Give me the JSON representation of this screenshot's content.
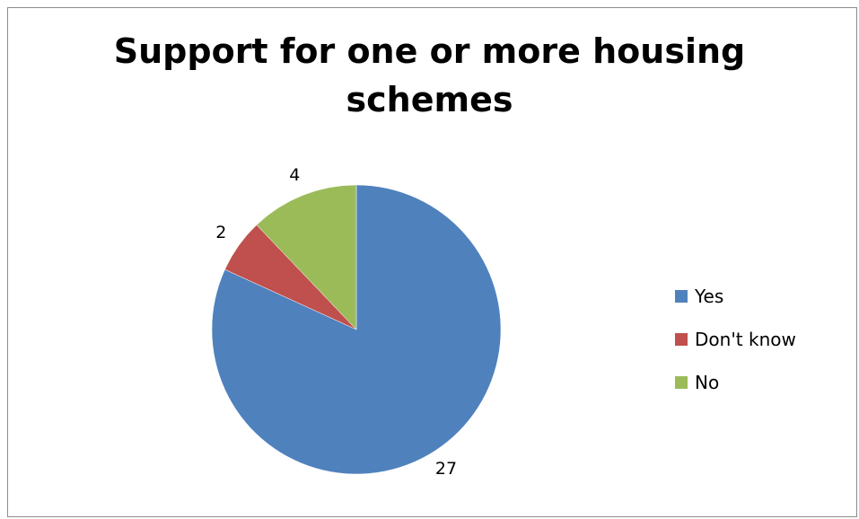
{
  "chart_data": {
    "type": "pie",
    "title": "Support for one or more housing schemes",
    "title_lines": [
      "Support for one or more housing",
      "schemes"
    ],
    "categories": [
      "Yes",
      "Don't know",
      "No"
    ],
    "values": [
      27,
      2,
      4
    ],
    "colors": [
      "#4F81BD",
      "#C0504D",
      "#9BBB59"
    ],
    "start_angle_deg": 0,
    "direction": "clockwise",
    "data_labels": true,
    "legend_position": "right"
  }
}
